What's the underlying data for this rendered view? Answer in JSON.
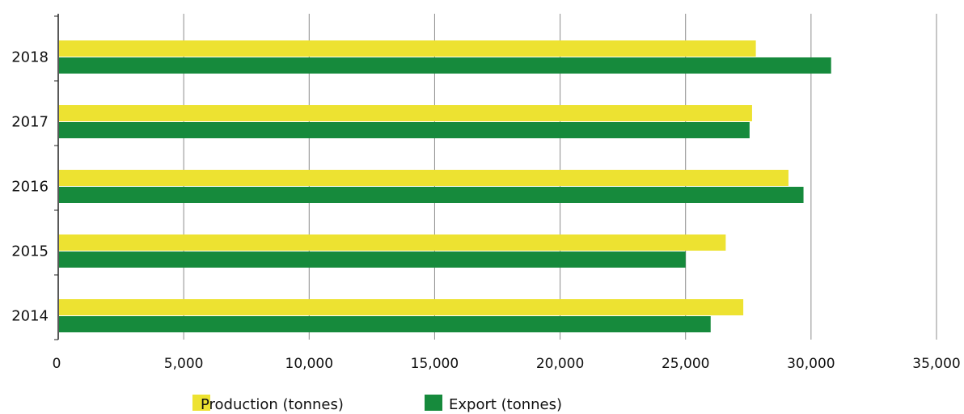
{
  "chart_data": {
    "type": "bar",
    "orientation": "horizontal",
    "categories": [
      "2018",
      "2017",
      "2016",
      "2015",
      "2014"
    ],
    "series": [
      {
        "name": "Production (tonnes)",
        "color": "#EDE231",
        "values": [
          27800,
          27650,
          29100,
          26600,
          27300
        ]
      },
      {
        "name": "Export (tonnes)",
        "color": "#168A3C",
        "values": [
          30800,
          27550,
          29700,
          25000,
          26000
        ]
      }
    ],
    "x_ticks": [
      "0",
      "5,000",
      "10,000",
      "15,000",
      "20,000",
      "25,000",
      "30,000",
      "35,000"
    ],
    "xlim": [
      0,
      35000
    ],
    "grid": true,
    "legend_position": "bottom",
    "title": "",
    "xlabel": "",
    "ylabel": ""
  }
}
